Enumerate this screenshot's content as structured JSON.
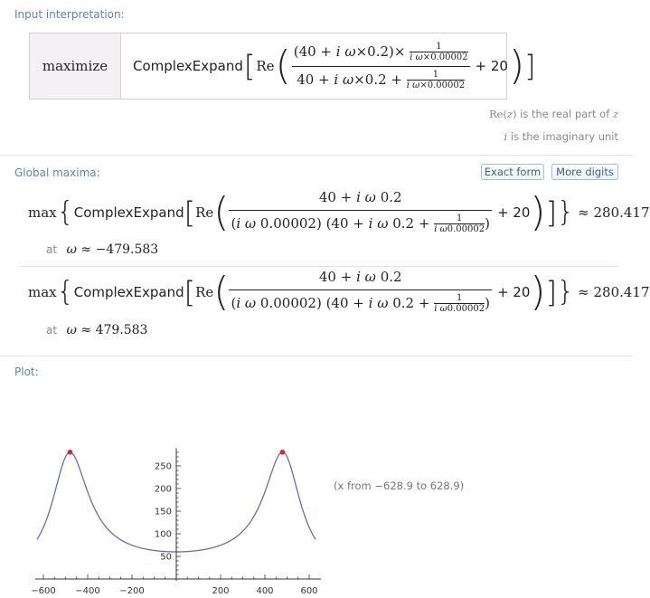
{
  "input": {
    "title": "Input interpretation:",
    "verb": "maximize",
    "func": "ComplexExpand",
    "re": "Re",
    "n40": "(40 + ",
    "i": "i",
    "omega": "ω",
    "times": "×",
    "c02": "0.2)",
    "c02b": "0.2 + ",
    "d40": "40 + ",
    "one": "1",
    "c00002": "0.00002",
    "plus20": "+ 20",
    "note1_re": "Re(",
    "note1_z": "z",
    "note1_close": ")",
    "note1_text": "is the real part of",
    "note2_i": "i",
    "note2_text": "is the imaginary unit"
  },
  "maxima": {
    "title": "Global maxima:",
    "exact_form": "Exact form",
    "more_digits": "More digits",
    "max": "max",
    "func": "ComplexExpand",
    "re": "Re",
    "num": "40 + ",
    "i": "i",
    "omega": "ω",
    "c02": "0.2",
    "den_a": "(",
    "den_b": "0.00002) (40 + ",
    "den_c": "0.2 + ",
    "den_close": ")",
    "one": "1",
    "c00002": "0.00002",
    "plus20": "+ 20",
    "approx": "≈ 280.417",
    "results": [
      {
        "at": "at",
        "value": "≈ −479.583"
      },
      {
        "at": "at",
        "value": "≈ 479.583"
      }
    ]
  },
  "plot": {
    "title": "Plot:",
    "range_note": "(x from −628.9 to 628.9)",
    "colors": {
      "curve": "#6b6bb5",
      "peak": "#e8202a",
      "axis": "#333333"
    },
    "xticks": [
      "−600",
      "−400",
      "−200",
      "200",
      "400",
      "600"
    ],
    "yticks": [
      "250",
      "200",
      "150",
      "100",
      "50"
    ]
  },
  "chart_data": {
    "type": "line",
    "xlim": [
      -628.9,
      628.9
    ],
    "ylim": [
      0,
      285
    ],
    "x_tick_values": [
      -600,
      -400,
      -200,
      200,
      400,
      600
    ],
    "y_tick_values": [
      50,
      100,
      150,
      200,
      250
    ],
    "peaks": [
      [
        -479.583,
        280.417
      ],
      [
        479.583,
        280.417
      ]
    ],
    "grid": false
  }
}
